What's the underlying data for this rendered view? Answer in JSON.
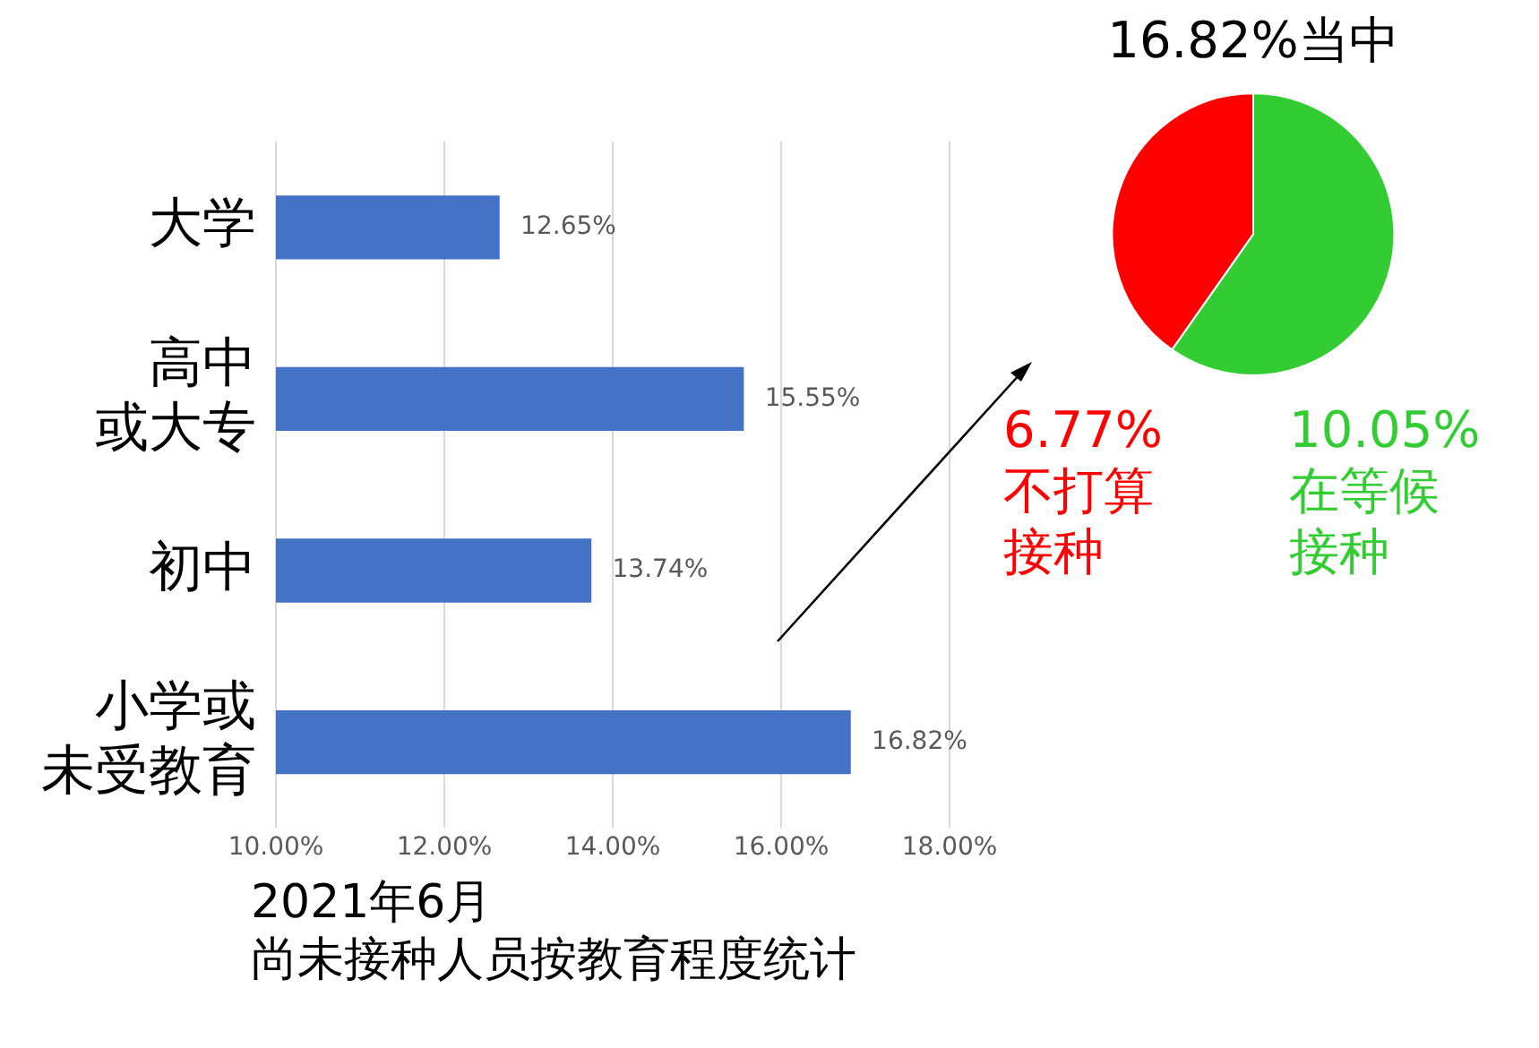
{
  "chart_data": [
    {
      "type": "bar",
      "orientation": "horizontal",
      "title": "尚未接种人员按教育程度统计",
      "subtitle": "2021年6月",
      "categories": [
        "大学",
        "高中或大专",
        "初中",
        "小学或未受教育"
      ],
      "values": [
        12.65,
        15.55,
        13.74,
        16.82
      ],
      "color": "#4472c4",
      "value_labels": [
        "12.65%",
        "15.55%",
        "13.74%",
        "16.82%"
      ],
      "xlim": [
        10,
        18
      ],
      "xticks": [
        {
          "value": 10,
          "label": "10.00%"
        },
        {
          "value": 12,
          "label": "12.00%"
        },
        {
          "value": 14,
          "label": "14.00%"
        },
        {
          "value": 16,
          "label": "16.00%"
        },
        {
          "value": 18,
          "label": "18.00%"
        }
      ],
      "grid": "x",
      "legend": false
    },
    {
      "type": "pie",
      "title": "16.82%当中",
      "categories": [
        "不打算接种",
        "在等候接种"
      ],
      "values": [
        6.77,
        10.05
      ],
      "colors": [
        "#ff0000",
        "#33cc33"
      ],
      "value_labels": [
        "6.77%",
        "10.05%"
      ],
      "legend": false
    }
  ]
}
